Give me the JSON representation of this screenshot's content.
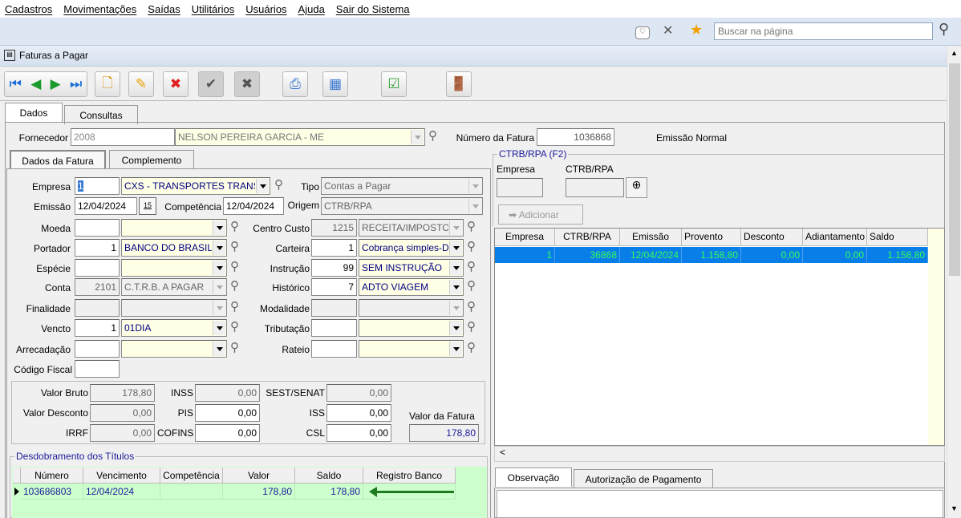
{
  "menu": [
    "Cadastros",
    "Movimentações",
    "Saídas",
    "Utilitários",
    "Usuários",
    "Ajuda",
    "Sair do Sistema"
  ],
  "browser": {
    "search_placeholder": "Buscar na página",
    "icons": [
      "pocket-icon",
      "pin-off-icon",
      "star-icon",
      "search-icon"
    ]
  },
  "window": {
    "title": "Faturas a Pagar"
  },
  "toolbar": [
    "first-icon",
    "prev-icon",
    "next-icon",
    "last-icon",
    "new-icon",
    "edit-icon",
    "delete-icon",
    "confirm-icon",
    "cancel-icon",
    "print-icon",
    "grid-icon",
    "report-icon",
    "exit-icon"
  ],
  "tabs": [
    "Dados",
    "Consultas"
  ],
  "fornecedor": {
    "label": "Fornecedor",
    "code": "2008",
    "name": "NELSON PEREIRA GARCIA - ME",
    "numero_label": "Número da Fatura",
    "numero": "1036868",
    "emissao_tipo": "Emissão Normal"
  },
  "subtabs": [
    "Dados da Fatura",
    "Complemento"
  ],
  "form": {
    "empresa": {
      "label": "Empresa",
      "code": "1",
      "value": "CXS - TRANSPORTES TRANS"
    },
    "tipo": {
      "label": "Tipo",
      "value": "Contas a Pagar"
    },
    "emissao": {
      "label": "Emissão",
      "value": "12/04/2024",
      "cal": "15"
    },
    "competencia": {
      "label": "Competência",
      "value": "12/04/2024"
    },
    "origem": {
      "label": "Origem",
      "value": "CTRB/RPA"
    },
    "left": [
      {
        "label": "Moeda",
        "code": "",
        "value": ""
      },
      {
        "label": "Portador",
        "code": "1",
        "value": "BANCO DO BRASIL"
      },
      {
        "label": "Espécie",
        "code": "",
        "value": ""
      },
      {
        "label": "Conta",
        "code": "2101",
        "value": "C.T.R.B.  A PAGAR",
        "ro": true
      },
      {
        "label": "Finalidade",
        "code": "",
        "value": "",
        "ro": true
      },
      {
        "label": "Vencto",
        "code": "1",
        "value": "01DIA"
      },
      {
        "label": "Arrecadação",
        "code": "",
        "value": ""
      }
    ],
    "right": [
      {
        "label": "Centro Custo",
        "code": "1215",
        "value": "RECEITA/IMPOSTOS",
        "ro": true
      },
      {
        "label": "Carteira",
        "code": "1",
        "value": "Cobrança simples-D"
      },
      {
        "label": "Instrução",
        "code": "99",
        "value": "SEM INSTRUÇÃO"
      },
      {
        "label": "Histórico",
        "code": "7",
        "value": "ADTO VIAGEM"
      },
      {
        "label": "Modalidade",
        "code": "",
        "value": "",
        "ro": true
      },
      {
        "label": "Tributação",
        "code": "",
        "value": ""
      },
      {
        "label": "Rateio",
        "code": "",
        "value": ""
      }
    ],
    "codigo_fiscal": {
      "label": "Código Fiscal",
      "value": ""
    }
  },
  "totals": {
    "valor_bruto": {
      "label": "Valor Bruto",
      "value": "178,80"
    },
    "valor_desconto": {
      "label": "Valor Desconto",
      "value": "0,00"
    },
    "irrf": {
      "label": "IRRF",
      "value": "0,00"
    },
    "inss": {
      "label": "INSS",
      "value": "0,00"
    },
    "pis": {
      "label": "PIS",
      "value": "0,00"
    },
    "cofins": {
      "label": "COFINS",
      "value": "0,00"
    },
    "sest": {
      "label": "SEST/SENAT",
      "value": "0,00"
    },
    "iss": {
      "label": "ISS",
      "value": "0,00"
    },
    "csl": {
      "label": "CSL",
      "value": "0,00"
    },
    "valor_fatura": {
      "label": "Valor da Fatura",
      "value": "178,80"
    }
  },
  "titulos": {
    "title": "Desdobramento dos Títulos",
    "columns": [
      "Número",
      "Vencimento",
      "Competência",
      "Valor",
      "Saldo",
      "Registro Banco"
    ],
    "rows": [
      [
        "103686803",
        "12/04/2024",
        "",
        "178,80",
        "178,80",
        ""
      ]
    ]
  },
  "ctrb": {
    "title": "CTRB/RPA (F2)",
    "empresa_label": "Empresa",
    "ctrb_label": "CTRB/RPA",
    "add_label": "Adicionar",
    "columns": [
      "Empresa",
      "CTRB/RPA",
      "Emissão",
      "Provento",
      "Desconto",
      "Adiantamento",
      "Saldo"
    ],
    "rows": [
      [
        "1",
        "36868",
        "12/04/2024",
        "1.158,80",
        "0,00",
        "0,00",
        "1.158,80"
      ]
    ]
  },
  "bottom_tabs": [
    "Observação",
    "Autorização de Pagamento"
  ],
  "colors": {
    "selection": "#0a7ee8",
    "selection_text": "#33ff55",
    "grid_green": "#ccffcc",
    "arrow": "#1e7b1e"
  }
}
